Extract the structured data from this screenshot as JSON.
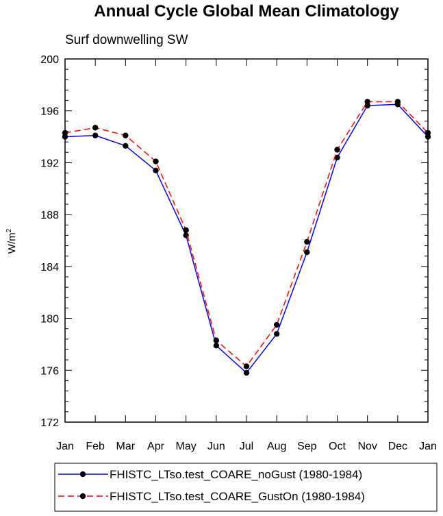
{
  "chart_data": {
    "type": "line",
    "title": "Annual Cycle Global Mean Climatology",
    "subtitle": "Surf downwelling SW",
    "xlabel": "",
    "ylabel": "W/m",
    "ylabel_superscript": "2",
    "categories": [
      "Jan",
      "Feb",
      "Mar",
      "Apr",
      "May",
      "Jun",
      "Jul",
      "Aug",
      "Sep",
      "Oct",
      "Nov",
      "Dec",
      "Jan"
    ],
    "ylim": [
      172,
      200
    ],
    "yticks": [
      172,
      176,
      180,
      184,
      188,
      192,
      196,
      200
    ],
    "grid": false,
    "legend_position": "bottom",
    "series": [
      {
        "name": "FHISTC_LTso.test_COARE_noGust (1980-1984)",
        "color": "#0000ff",
        "line_style": "solid",
        "marker": "filled-circle",
        "values": [
          194.0,
          194.1,
          193.3,
          191.4,
          186.4,
          177.9,
          175.8,
          178.8,
          185.1,
          192.4,
          196.4,
          196.5,
          194.0
        ]
      },
      {
        "name": "FHISTC_LTso.test_COARE_GustOn (1980-1984)",
        "color": "#ff0000",
        "line_style": "dashed",
        "marker": "filled-circle",
        "values": [
          194.3,
          194.7,
          194.1,
          192.1,
          186.8,
          178.3,
          176.3,
          179.5,
          185.9,
          193.0,
          196.7,
          196.7,
          194.3
        ]
      }
    ]
  }
}
